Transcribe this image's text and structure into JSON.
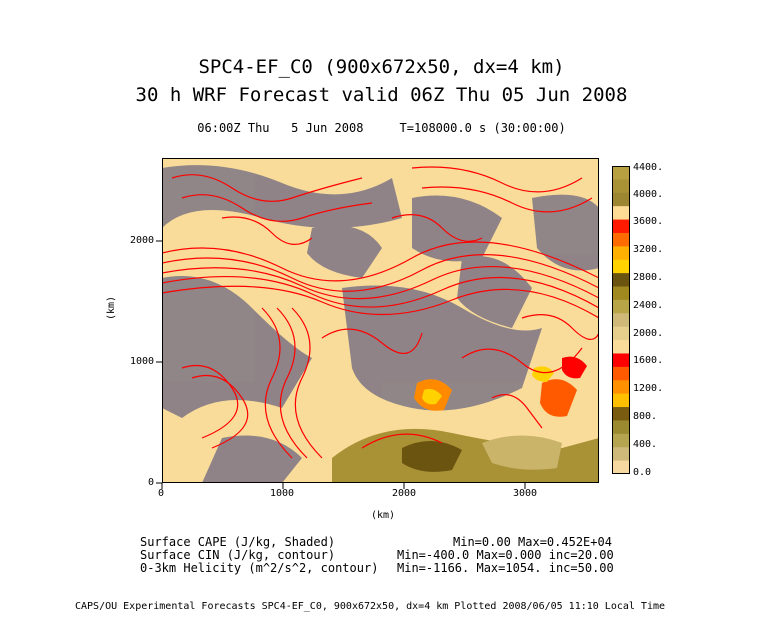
{
  "header": {
    "title_line1": "SPC4-EF_C0 (900x672x50, dx=4 km)",
    "title_line2": "30 h WRF Forecast valid 06Z Thu 05 Jun 2008",
    "valid_line": "06:00Z Thu   5 Jun 2008     T=108000.0 s (30:00:00)"
  },
  "axes": {
    "xlabel": "(km)",
    "ylabel": "(km)",
    "xticks": [
      "0",
      "1000",
      "2000",
      "3000"
    ],
    "yticks": [
      "0",
      "1000",
      "2000"
    ]
  },
  "colorbar": {
    "labels": [
      "4400.",
      "4000.",
      "3600.",
      "3200.",
      "2800.",
      "2400.",
      "2000.",
      "1600.",
      "1200.",
      "800.",
      "400.",
      "0.0"
    ],
    "colors": [
      "#b6a03f",
      "#a99236",
      "#9c8631",
      "#ffdc96",
      "#ff1a00",
      "#fe6b00",
      "#ffb000",
      "#ffd200",
      "#6b5310",
      "#a08a20",
      "#b8a548",
      "#cfb978",
      "#e6cf8c",
      "#f9dc9a",
      "#ff0000",
      "#ff5a00",
      "#ff9000",
      "#ffc000",
      "#7a5c10",
      "#9c8a30",
      "#b5a550",
      "#ceb87a",
      "#f6d9a0"
    ]
  },
  "legend": [
    {
      "name": "Surface CAPE (J/kg, Shaded)",
      "stats": "Min=0.00 Max=0.452E+04"
    },
    {
      "name": "Surface CIN (J/kg, contour)",
      "stats": "Min=-400.0 Max=0.000 inc=20.00"
    },
    {
      "name": "0-3km Helicity (m^2/s^2, contour)",
      "stats": "Min=-1166. Max=1054. inc=50.00"
    }
  ],
  "footer": "CAPS/OU Experimental Forecasts  SPC4-EF_C0, 900x672x50, dx=4 km  Plotted 2008/06/05 11:10 Local Time",
  "map_colors": {
    "background": "#f9dc9a",
    "cin_gray": "#8a7f86",
    "contour_red": "#ff0000",
    "olive": "#a99236",
    "dark_olive": "#6b5310",
    "orange": "#ff8a00",
    "yellow": "#ffd200"
  }
}
